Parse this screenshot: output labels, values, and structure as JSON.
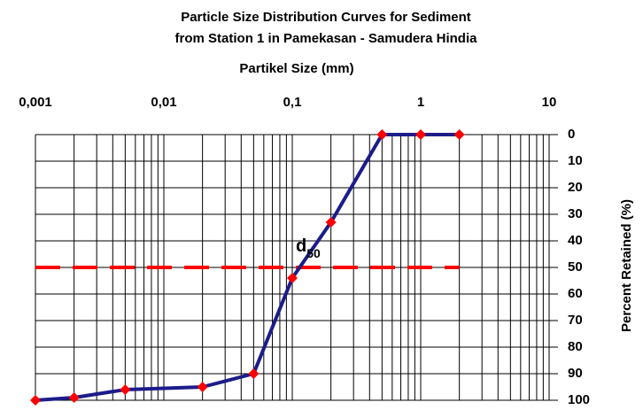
{
  "chart_data": {
    "type": "line",
    "title": [
      "Particle Size Distribution Curves for Sediment",
      "from Station 1 in Pamekasan  - Samudera Hindia"
    ],
    "x_label": "Partikel Size (mm)",
    "y_label": "Percent Retained (%)",
    "x_scale": "log",
    "y_inverted": true,
    "xlim": [
      0.001,
      10
    ],
    "ylim": [
      0,
      100
    ],
    "xticks": [
      {
        "value": 0.001,
        "label": "0,001"
      },
      {
        "value": 0.01,
        "label": "0,01"
      },
      {
        "value": 0.1,
        "label": "0,1"
      },
      1,
      10
    ],
    "yticks": [
      0,
      10,
      20,
      30,
      40,
      50,
      60,
      70,
      80,
      90,
      100
    ],
    "grid": true,
    "series": [
      {
        "name": "Station 1",
        "color": "#1c1c8a",
        "marker_color": "#ff0000",
        "x": [
          0.001,
          0.002,
          0.005,
          0.02,
          0.05,
          0.1,
          0.2,
          0.5,
          1,
          2
        ],
        "values": [
          100,
          99,
          96,
          95,
          90,
          54,
          33,
          0,
          0,
          0
        ]
      }
    ],
    "reference_line": {
      "y": 50,
      "x": [
        0.001,
        2
      ],
      "color": "#ff0000"
    },
    "annotation": {
      "text": "d",
      "subscript": "50",
      "x": 0.1,
      "y": 43
    }
  }
}
